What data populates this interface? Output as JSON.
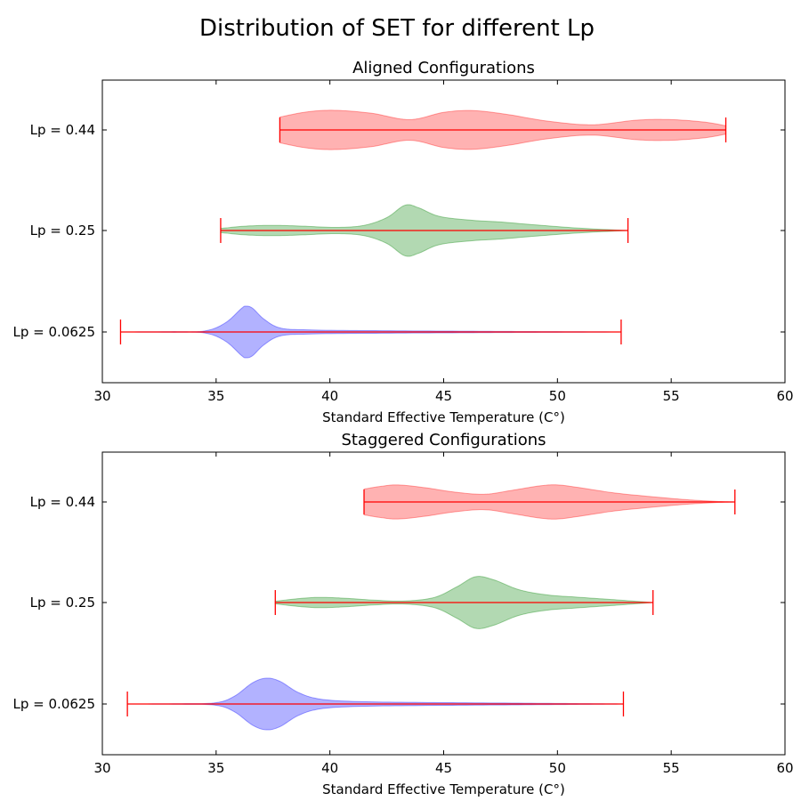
{
  "figure": {
    "suptitle": "Distribution of SET for different Lp"
  },
  "chart_data": [
    {
      "type": "violin",
      "orientation": "horizontal",
      "title": "Aligned Configurations",
      "xlabel": "Standard Effective Temperature (C°)",
      "ylabel": "",
      "xlim": [
        30,
        60
      ],
      "xticks": [
        30,
        35,
        40,
        45,
        50,
        55,
        60
      ],
      "categories": [
        "Lp = 0.0625",
        "Lp = 0.25",
        "Lp = 0.44"
      ],
      "grid": false,
      "series": [
        {
          "category": "Lp = 0.0625",
          "color": "#0000ff",
          "min": 30.8,
          "max": 52.8,
          "density": [
            [
              30.8,
              0
            ],
            [
              33.0,
              0.01
            ],
            [
              34.5,
              0.04
            ],
            [
              35.4,
              0.35
            ],
            [
              36.1,
              0.9
            ],
            [
              36.3,
              1.0
            ],
            [
              36.6,
              0.92
            ],
            [
              37.1,
              0.5
            ],
            [
              37.8,
              0.16
            ],
            [
              39,
              0.08
            ],
            [
              42,
              0.05
            ],
            [
              46,
              0.03
            ],
            [
              49,
              0.015
            ],
            [
              52.8,
              0
            ]
          ]
        },
        {
          "category": "Lp = 0.25",
          "color": "#008000",
          "min": 35.2,
          "max": 53.1,
          "density": [
            [
              35.2,
              0.08
            ],
            [
              36.3,
              0.17
            ],
            [
              37.5,
              0.2
            ],
            [
              38.8,
              0.17
            ],
            [
              40.3,
              0.12
            ],
            [
              41.5,
              0.2
            ],
            [
              42.5,
              0.5
            ],
            [
              43.3,
              0.98
            ],
            [
              43.9,
              0.88
            ],
            [
              44.8,
              0.55
            ],
            [
              46.2,
              0.4
            ],
            [
              47.5,
              0.33
            ],
            [
              49,
              0.22
            ],
            [
              51,
              0.09
            ],
            [
              53.1,
              0
            ]
          ]
        },
        {
          "category": "Lp = 0.44",
          "color": "#ff0000",
          "min": 37.8,
          "max": 57.4,
          "density": [
            [
              37.8,
              0.5
            ],
            [
              39,
              0.7
            ],
            [
              40.2,
              0.76
            ],
            [
              41.8,
              0.65
            ],
            [
              43.5,
              0.4
            ],
            [
              45,
              0.68
            ],
            [
              46.3,
              0.75
            ],
            [
              47.8,
              0.6
            ],
            [
              49.5,
              0.35
            ],
            [
              51.5,
              0.2
            ],
            [
              53.5,
              0.38
            ],
            [
              55,
              0.4
            ],
            [
              56.5,
              0.3
            ],
            [
              57.4,
              0.16
            ]
          ]
        }
      ]
    },
    {
      "type": "violin",
      "orientation": "horizontal",
      "title": "Staggered Configurations",
      "xlabel": "Standard Effective Temperature (C°)",
      "ylabel": "",
      "xlim": [
        30,
        60
      ],
      "xticks": [
        30,
        35,
        40,
        45,
        50,
        55,
        60
      ],
      "categories": [
        "Lp = 0.0625",
        "Lp = 0.25",
        "Lp = 0.44"
      ],
      "grid": false,
      "series": [
        {
          "category": "Lp = 0.0625",
          "color": "#0000ff",
          "min": 31.1,
          "max": 52.9,
          "density": [
            [
              31.1,
              0
            ],
            [
              33.5,
              0.01
            ],
            [
              35,
              0.05
            ],
            [
              35.8,
              0.3
            ],
            [
              36.6,
              0.82
            ],
            [
              37.2,
              1.0
            ],
            [
              37.8,
              0.88
            ],
            [
              38.6,
              0.45
            ],
            [
              39.5,
              0.2
            ],
            [
              41,
              0.1
            ],
            [
              44,
              0.06
            ],
            [
              48,
              0.035
            ],
            [
              51,
              0.015
            ],
            [
              52.9,
              0
            ]
          ]
        },
        {
          "category": "Lp = 0.25",
          "color": "#008000",
          "min": 37.6,
          "max": 54.2,
          "density": [
            [
              37.6,
              0.05
            ],
            [
              38.6,
              0.15
            ],
            [
              39.5,
              0.2
            ],
            [
              40.6,
              0.17
            ],
            [
              42,
              0.09
            ],
            [
              43.3,
              0.06
            ],
            [
              44.6,
              0.2
            ],
            [
              45.6,
              0.62
            ],
            [
              46.4,
              1.0
            ],
            [
              47.2,
              0.88
            ],
            [
              48.3,
              0.5
            ],
            [
              49.5,
              0.3
            ],
            [
              51,
              0.2
            ],
            [
              52.5,
              0.11
            ],
            [
              54.2,
              0
            ]
          ]
        },
        {
          "category": "Lp = 0.44",
          "color": "#ff0000",
          "min": 41.5,
          "max": 57.8,
          "density": [
            [
              41.5,
              0.5
            ],
            [
              42.2,
              0.6
            ],
            [
              43,
              0.66
            ],
            [
              44.2,
              0.55
            ],
            [
              45.5,
              0.38
            ],
            [
              46.8,
              0.3
            ],
            [
              48,
              0.45
            ],
            [
              49.2,
              0.62
            ],
            [
              50,
              0.66
            ],
            [
              51,
              0.55
            ],
            [
              52.5,
              0.35
            ],
            [
              54.2,
              0.2
            ],
            [
              55.5,
              0.1
            ],
            [
              56.8,
              0.03
            ],
            [
              57.8,
              0
            ]
          ]
        }
      ]
    }
  ]
}
